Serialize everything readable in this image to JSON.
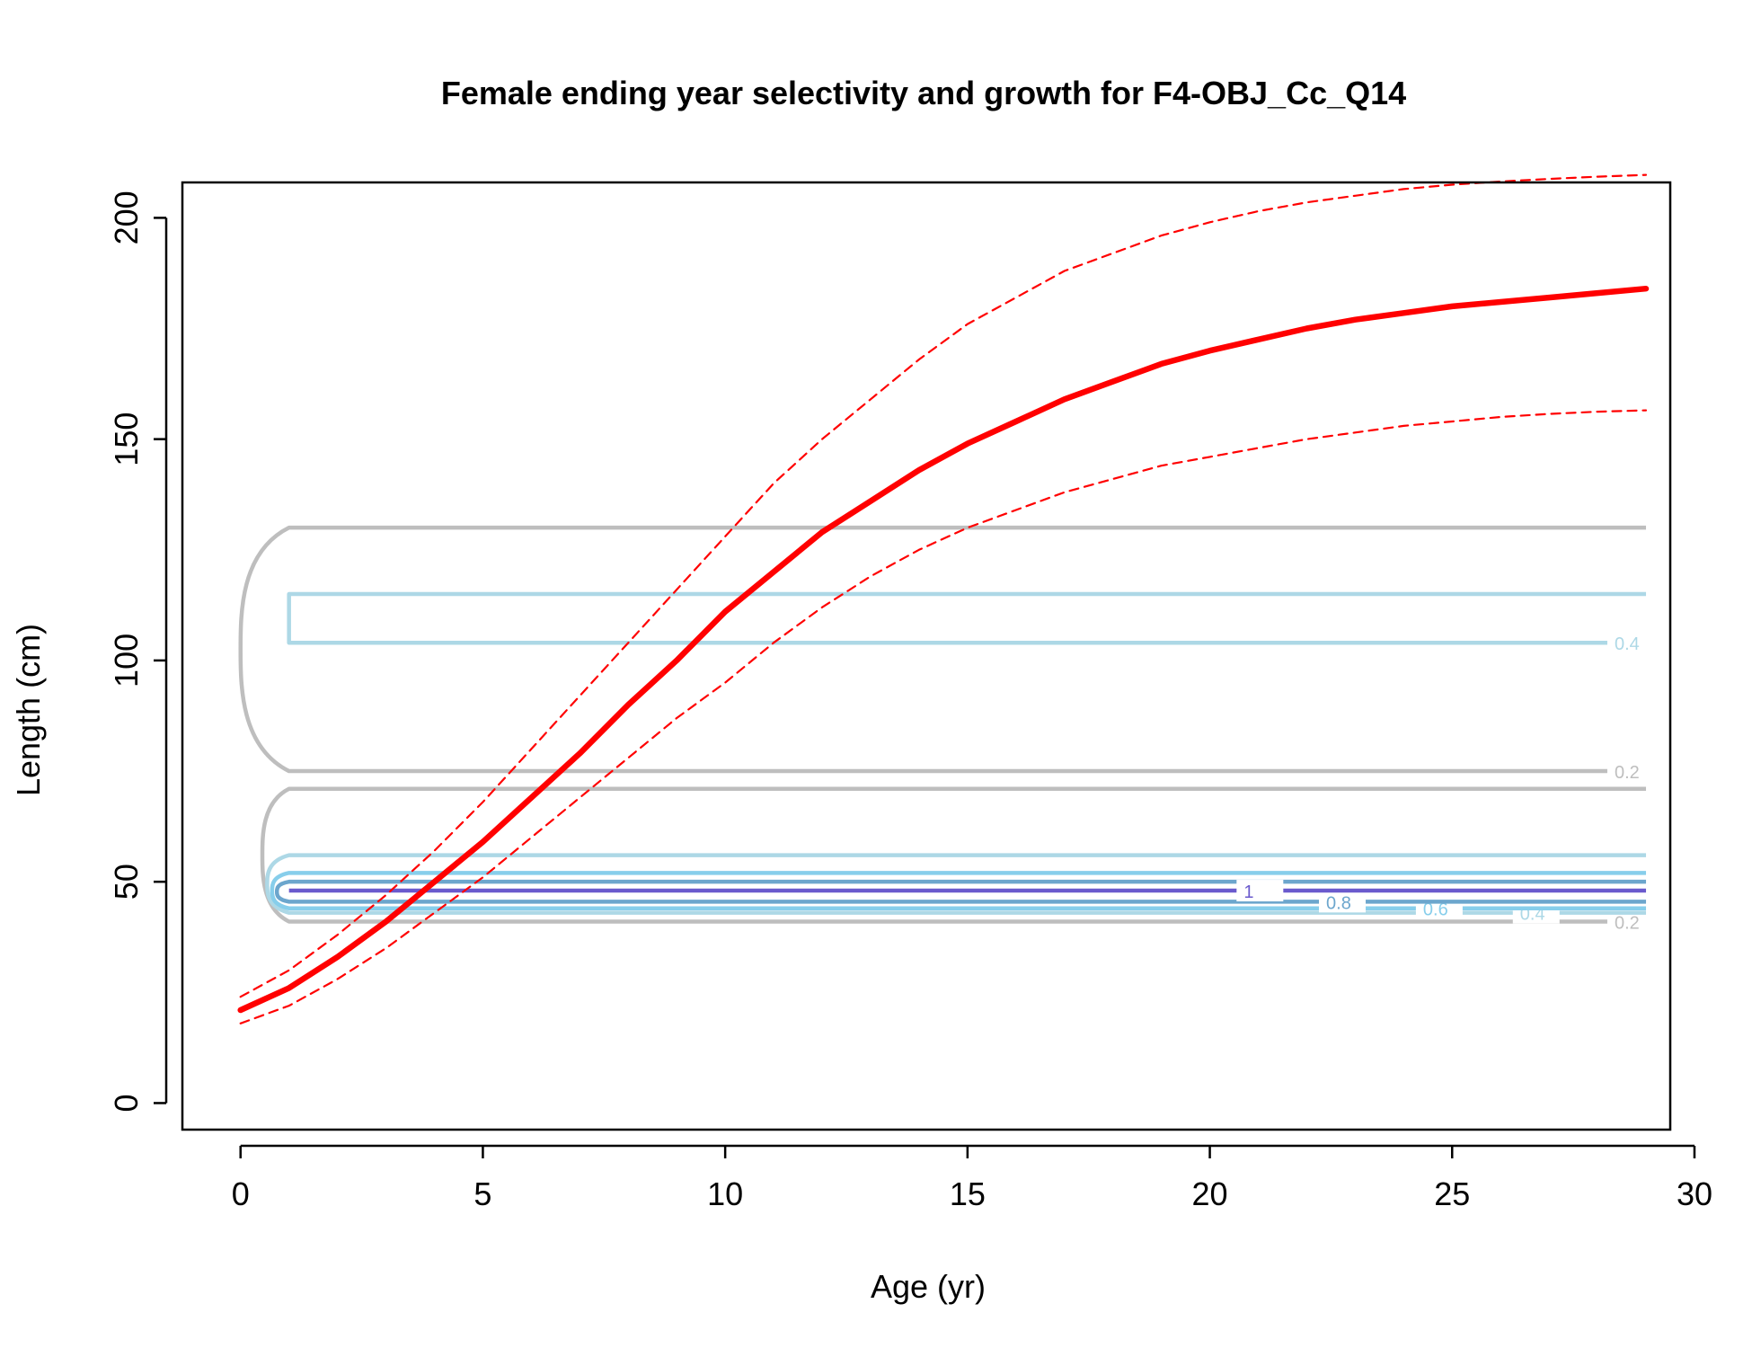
{
  "chart_data": {
    "type": "line",
    "title": "Female ending year selectivity and growth for F4-OBJ_Cc_Q14",
    "xlabel": "Age (yr)",
    "ylabel": "Length (cm)",
    "xlim": [
      -1.2,
      29.5
    ],
    "ylim": [
      -6,
      208
    ],
    "xticks": [
      0,
      5,
      10,
      15,
      20,
      25,
      30
    ],
    "yticks": [
      0,
      50,
      100,
      150,
      200
    ],
    "xtick_labels": [
      "0",
      "5",
      "10",
      "15",
      "20",
      "25",
      "30"
    ],
    "ytick_labels": [
      "0",
      "50",
      "100",
      "150",
      "200"
    ],
    "grid": false,
    "series": [
      {
        "role": "mean-length-at-age",
        "color": "#ff0000",
        "style": "solid",
        "x": [
          0,
          1,
          2,
          3,
          4,
          5,
          6,
          7,
          8,
          9,
          10,
          11,
          12,
          13,
          14,
          15,
          16,
          17,
          18,
          19,
          20,
          21,
          22,
          23,
          24,
          25,
          26,
          27,
          28,
          29
        ],
        "values": [
          21,
          26,
          33,
          41,
          50,
          59,
          69,
          79,
          90,
          100,
          111,
          120,
          129,
          136,
          143,
          149,
          154,
          159,
          163,
          167,
          170,
          172.5,
          175,
          177,
          178.5,
          180,
          181,
          182,
          183,
          184
        ]
      },
      {
        "role": "upper-interval",
        "color": "#ff0000",
        "style": "dashed",
        "x": [
          0,
          1,
          2,
          3,
          4,
          5,
          6,
          7,
          8,
          9,
          10,
          11,
          12,
          13,
          14,
          15,
          16,
          17,
          18,
          19,
          20,
          21,
          22,
          23,
          24,
          25,
          26,
          27,
          28,
          29
        ],
        "values": [
          24,
          30,
          38,
          47,
          57,
          68,
          80,
          92,
          104,
          116,
          128,
          140,
          150,
          159,
          168,
          176,
          182,
          188,
          192,
          196,
          199,
          201.5,
          203.5,
          205,
          206.5,
          207.5,
          208.2,
          208.8,
          209.3,
          209.7
        ]
      },
      {
        "role": "lower-interval",
        "color": "#ff0000",
        "style": "dashed",
        "x": [
          0,
          1,
          2,
          3,
          4,
          5,
          6,
          7,
          8,
          9,
          10,
          11,
          12,
          13,
          14,
          15,
          16,
          17,
          18,
          19,
          20,
          21,
          22,
          23,
          24,
          25,
          26,
          27,
          28,
          29
        ],
        "values": [
          18,
          22,
          28,
          35,
          43,
          51,
          60,
          69,
          78,
          87,
          95,
          104,
          112,
          119,
          125,
          130,
          134,
          138,
          141,
          144,
          146,
          148,
          150,
          151.5,
          153,
          154,
          155,
          155.7,
          156.2,
          156.5
        ]
      }
    ],
    "contours": [
      {
        "level": "0.2",
        "color": "#bebebe",
        "low": 75,
        "high": 130,
        "xstart": 1,
        "bulge": 1.0,
        "label_y": 75
      },
      {
        "level": "0.4",
        "color": "#add8e6",
        "low": 104,
        "high": 115,
        "xstart": 1,
        "bulge": 0.0,
        "label_y": 104
      },
      {
        "level": "0.2",
        "color": "#bebebe",
        "low": 41,
        "high": 71,
        "xstart": 1,
        "bulge": 0.55,
        "label_y": 41
      },
      {
        "level": "0.4",
        "color": "#add8e6",
        "low": 43,
        "high": 56,
        "xstart": 1,
        "bulge": 0.45,
        "label_y": 43
      },
      {
        "level": "0.6",
        "color": "#87ceeb",
        "low": 44,
        "high": 52,
        "xstart": 1,
        "bulge": 0.35,
        "label_y": 44
      },
      {
        "level": "0.8",
        "color": "#6ca6cd",
        "low": 45.5,
        "high": 50,
        "xstart": 1,
        "bulge": 0.25,
        "label_y": 45.5
      },
      {
        "level": "1",
        "color": "#6a5acd",
        "low": 48,
        "high": 48,
        "xstart": 1,
        "bulge": 0.0,
        "label_y": 48
      }
    ],
    "contour_label_x": [
      28.35,
      28.35,
      28.35,
      26.4,
      24.4,
      22.4,
      20.7
    ]
  }
}
